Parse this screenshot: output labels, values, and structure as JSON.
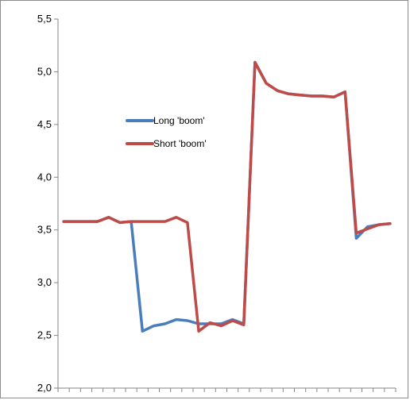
{
  "chart_data": {
    "type": "line",
    "title": "",
    "xlabel": "",
    "ylabel": "",
    "ylim": [
      2.0,
      5.5
    ],
    "yticks": [
      2.0,
      2.5,
      3.0,
      3.5,
      4.0,
      4.5,
      5.0,
      5.5
    ],
    "yticklabels": [
      "2,0",
      "2,5",
      "3,0",
      "3,5",
      "4,0",
      "4,5",
      "5,0",
      "5,5"
    ],
    "x": [
      1,
      2,
      3,
      4,
      5,
      6,
      7,
      8,
      9,
      10,
      11,
      12,
      13,
      14,
      15,
      16,
      17,
      18,
      19,
      20,
      21,
      22,
      23,
      24,
      25,
      26,
      27,
      28,
      29,
      30
    ],
    "grid": false,
    "legend_position": "center-left",
    "series": [
      {
        "name": "Long 'boom'",
        "color": "#4a7ebb",
        "values": [
          3.58,
          3.58,
          3.58,
          3.58,
          3.62,
          3.57,
          3.58,
          2.54,
          2.59,
          2.61,
          2.65,
          2.64,
          2.61,
          2.61,
          2.61,
          2.65,
          2.61,
          5.09,
          4.89,
          4.82,
          4.79,
          4.78,
          4.77,
          4.77,
          4.76,
          4.81,
          3.42,
          3.53,
          3.55,
          3.56
        ]
      },
      {
        "name": "Short 'boom'",
        "color": "#be4b48",
        "values": [
          3.58,
          3.58,
          3.58,
          3.58,
          3.62,
          3.57,
          3.58,
          3.58,
          3.58,
          3.58,
          3.62,
          3.57,
          2.54,
          2.62,
          2.59,
          2.64,
          2.6,
          5.09,
          4.89,
          4.82,
          4.79,
          4.78,
          4.77,
          4.77,
          4.76,
          4.81,
          3.47,
          3.51,
          3.55,
          3.56
        ]
      }
    ]
  }
}
